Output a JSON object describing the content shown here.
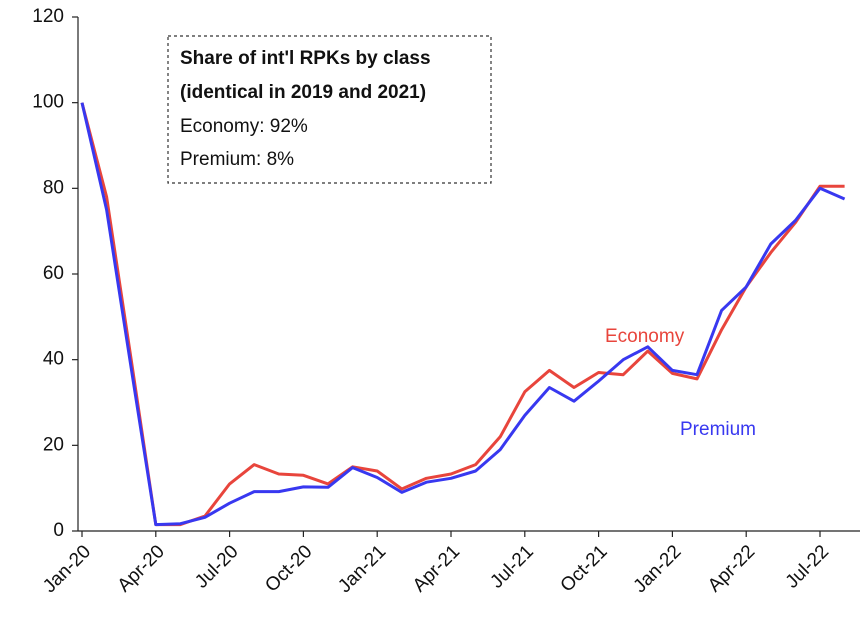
{
  "chart_data": {
    "type": "line",
    "categories": [
      "Jan-20",
      null,
      null,
      "Apr-20",
      null,
      null,
      "Jul-20",
      null,
      null,
      "Oct-20",
      null,
      null,
      "Jan-21",
      null,
      null,
      "Apr-21",
      null,
      null,
      "Jul-21",
      null,
      null,
      "Oct-21",
      null,
      null,
      "Jan-22",
      null,
      null,
      "Apr-22",
      null,
      null,
      "Jul-22",
      null
    ],
    "series": [
      {
        "name": "Economy",
        "color": "#e8453c",
        "values": [
          100,
          78,
          40,
          1.5,
          1.5,
          3.5,
          11,
          15.5,
          13.3,
          13,
          11,
          15,
          14,
          9.8,
          12.3,
          13.3,
          15.5,
          22,
          32.5,
          37.5,
          33.5,
          37,
          36.5,
          42,
          36.8,
          35.5,
          47,
          57,
          65,
          72,
          80.5,
          80.5
        ]
      },
      {
        "name": "Premium",
        "color": "#3838f0",
        "values": [
          100,
          75,
          38,
          1.5,
          1.7,
          3.2,
          6.5,
          9.2,
          9.2,
          10.3,
          10.2,
          14.8,
          12.5,
          9,
          11.4,
          12.3,
          14,
          19,
          27,
          33.5,
          30.3,
          35,
          40,
          43,
          37.5,
          36.5,
          51.5,
          57,
          67,
          72.5,
          80,
          77.5
        ]
      }
    ],
    "annotations": [
      "Share of int'l RPKs by class",
      "(identical in 2019 and 2021)",
      "Economy: 92%",
      "Premium:  8%"
    ],
    "ylim": [
      0,
      120
    ],
    "yticks": [
      0,
      20,
      40,
      60,
      80,
      100,
      120
    ],
    "grid": false
  }
}
